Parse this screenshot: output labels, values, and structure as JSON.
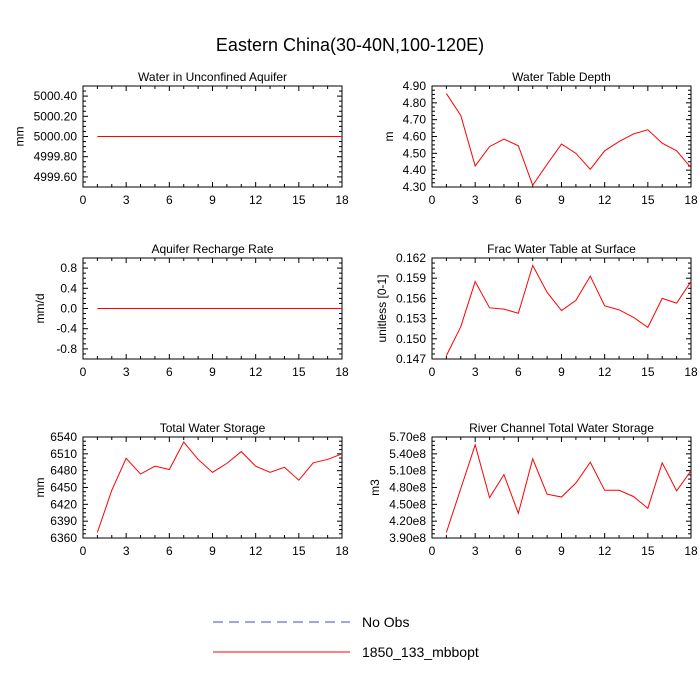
{
  "figure": {
    "title": "Eastern China(30-40N,100-120E)"
  },
  "legend": {
    "entries": [
      {
        "label": "No Obs",
        "style": "dashed",
        "color": "#4a4ad0"
      },
      {
        "label": "1850_133_mbbopt",
        "style": "solid",
        "color": "#ff0000"
      }
    ]
  },
  "chart_data": [
    {
      "type": "line",
      "title": "Water in Unconfined Aquifer",
      "xlabel": "",
      "ylabel": "mm",
      "xlim": [
        0,
        18
      ],
      "ylim": [
        4999.5,
        5000.5
      ],
      "xticks": [
        0,
        3,
        6,
        9,
        12,
        15,
        18
      ],
      "yticks": [
        4999.6,
        4999.8,
        5000.0,
        5000.2,
        5000.4
      ],
      "ytick_labels": [
        "4999.60",
        "4999.80",
        "5000.00",
        "5000.20",
        "5000.40"
      ],
      "series": [
        {
          "name": "1850_133_mbbopt",
          "color": "#ff0000",
          "x": [
            1,
            2,
            3,
            4,
            5,
            6,
            7,
            8,
            9,
            10,
            11,
            12,
            13,
            14,
            15,
            16,
            17,
            18
          ],
          "values": [
            5000,
            5000,
            5000,
            5000,
            5000,
            5000,
            5000,
            5000,
            5000,
            5000,
            5000,
            5000,
            5000,
            5000,
            5000,
            5000,
            5000,
            5000
          ]
        }
      ]
    },
    {
      "type": "line",
      "title": "Water Table Depth",
      "xlabel": "",
      "ylabel": "m",
      "xlim": [
        0,
        18
      ],
      "ylim": [
        4.3,
        4.9
      ],
      "xticks": [
        0,
        3,
        6,
        9,
        12,
        15,
        18
      ],
      "yticks": [
        4.3,
        4.4,
        4.5,
        4.6,
        4.7,
        4.8,
        4.9
      ],
      "ytick_labels": [
        "4.30",
        "4.40",
        "4.50",
        "4.60",
        "4.70",
        "4.80",
        "4.90"
      ],
      "series": [
        {
          "name": "1850_133_mbbopt",
          "color": "#ff0000",
          "x": [
            1,
            2,
            3,
            4,
            5,
            6,
            7,
            8,
            9,
            10,
            11,
            12,
            13,
            14,
            15,
            16,
            17,
            18
          ],
          "values": [
            4.855,
            4.725,
            4.425,
            4.54,
            4.585,
            4.545,
            4.31,
            4.435,
            4.555,
            4.5,
            4.405,
            4.515,
            4.57,
            4.615,
            4.64,
            4.56,
            4.515,
            4.415
          ]
        }
      ]
    },
    {
      "type": "line",
      "title": "Aquifer Recharge Rate",
      "xlabel": "",
      "ylabel": "mm/d",
      "xlim": [
        0,
        18
      ],
      "ylim": [
        -1.0,
        1.0
      ],
      "xticks": [
        0,
        3,
        6,
        9,
        12,
        15,
        18
      ],
      "yticks": [
        -0.8,
        -0.4,
        0.0,
        0.4,
        0.8
      ],
      "ytick_labels": [
        "-0.8",
        "-0.4",
        "0.0",
        "0.4",
        "0.8"
      ],
      "series": [
        {
          "name": "1850_133_mbbopt",
          "color": "#ff0000",
          "x": [
            1,
            2,
            3,
            4,
            5,
            6,
            7,
            8,
            9,
            10,
            11,
            12,
            13,
            14,
            15,
            16,
            17,
            18
          ],
          "values": [
            0,
            0,
            0,
            0,
            0,
            0,
            0,
            0,
            0,
            0,
            0,
            0,
            0,
            0,
            0,
            0,
            0,
            0
          ]
        }
      ]
    },
    {
      "type": "line",
      "title": "Frac Water Table at Surface",
      "xlabel": "",
      "ylabel": "unitless [0-1]",
      "xlim": [
        0,
        18
      ],
      "ylim": [
        0.147,
        0.162
      ],
      "xticks": [
        0,
        3,
        6,
        9,
        12,
        15,
        18
      ],
      "yticks": [
        0.147,
        0.15,
        0.153,
        0.156,
        0.159,
        0.162
      ],
      "ytick_labels": [
        "0.147",
        "0.150",
        "0.153",
        "0.156",
        "0.159",
        "0.162"
      ],
      "series": [
        {
          "name": "1850_133_mbbopt",
          "color": "#ff0000",
          "x": [
            1,
            2,
            3,
            4,
            5,
            6,
            7,
            8,
            9,
            10,
            11,
            12,
            13,
            14,
            15,
            16,
            17,
            18
          ],
          "values": [
            0.1475,
            0.1518,
            0.1585,
            0.1546,
            0.1544,
            0.1538,
            0.1609,
            0.1569,
            0.1542,
            0.1557,
            0.1593,
            0.1549,
            0.1543,
            0.1532,
            0.1517,
            0.156,
            0.1553,
            0.1585
          ]
        }
      ]
    },
    {
      "type": "line",
      "title": "Total Water Storage",
      "xlabel": "",
      "ylabel": "mm",
      "xlim": [
        0,
        18
      ],
      "ylim": [
        6360,
        6540
      ],
      "xticks": [
        0,
        3,
        6,
        9,
        12,
        15,
        18
      ],
      "yticks": [
        6360,
        6390,
        6420,
        6450,
        6480,
        6510,
        6540
      ],
      "ytick_labels": [
        "6360",
        "6390",
        "6420",
        "6450",
        "6480",
        "6510",
        "6540"
      ],
      "series": [
        {
          "name": "1850_133_mbbopt",
          "color": "#ff0000",
          "x": [
            1,
            2,
            3,
            4,
            5,
            6,
            7,
            8,
            9,
            10,
            11,
            12,
            13,
            14,
            15,
            16,
            17,
            18
          ],
          "values": [
            6370,
            6445,
            6502,
            6474,
            6488,
            6482,
            6531,
            6500,
            6477,
            6493,
            6514,
            6488,
            6477,
            6486,
            6463,
            6494,
            6500,
            6510
          ]
        }
      ]
    },
    {
      "type": "line",
      "title": "River Channel Total Water Storage",
      "xlabel": "",
      "ylabel": "m3",
      "xlim": [
        0,
        18
      ],
      "ylim": [
        390000000,
        570000000
      ],
      "xticks": [
        0,
        3,
        6,
        9,
        12,
        15,
        18
      ],
      "yticks": [
        390000000,
        420000000,
        450000000,
        480000000,
        510000000,
        540000000,
        570000000
      ],
      "ytick_labels": [
        "3.90e8",
        "4.20e8",
        "4.50e8",
        "4.80e8",
        "5.10e8",
        "5.40e8",
        "5.70e8"
      ],
      "series": [
        {
          "name": "1850_133_mbbopt",
          "color": "#ff0000",
          "x": [
            1,
            2,
            3,
            4,
            5,
            6,
            7,
            8,
            9,
            10,
            11,
            12,
            13,
            14,
            15,
            16,
            17,
            18
          ],
          "values": [
            400000000,
            478000000,
            556000000,
            462000000,
            503000000,
            434000000,
            531000000,
            468000000,
            463000000,
            488000000,
            525000000,
            475000000,
            475000000,
            464000000,
            443000000,
            524000000,
            474000000,
            510000000
          ]
        }
      ]
    }
  ]
}
